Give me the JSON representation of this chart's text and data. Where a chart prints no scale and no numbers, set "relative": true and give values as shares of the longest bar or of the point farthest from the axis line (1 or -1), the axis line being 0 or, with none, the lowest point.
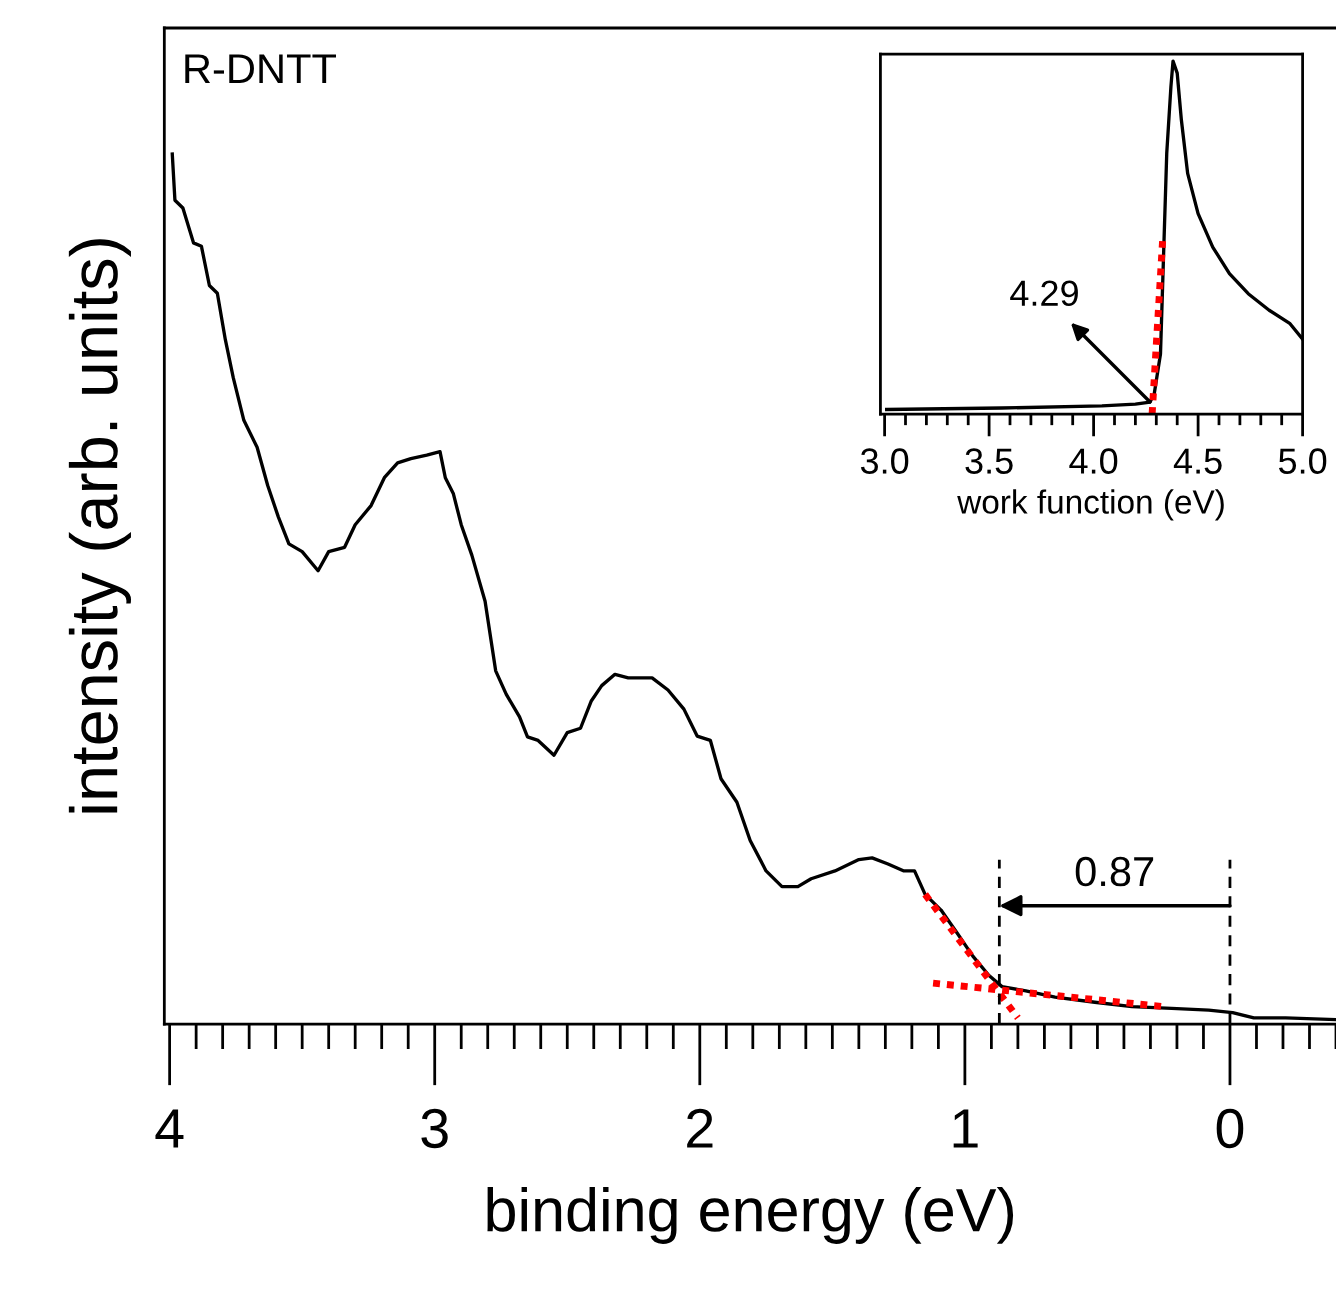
{
  "chart_data": [
    {
      "type": "line",
      "relative": true,
      "xlabel": "binding energy (eV)",
      "ylabel": "intensity (arb. units)",
      "tick_labels": "x",
      "xlim": [
        4.02,
        -0.4
      ],
      "xticks": [
        4,
        {
          "value": 3.9,
          "label": null
        },
        {
          "value": 3.8,
          "label": null
        },
        {
          "value": 3.7,
          "label": null
        },
        {
          "value": 3.6,
          "label": null
        },
        {
          "value": 3.5,
          "label": null
        },
        {
          "value": 3.4,
          "label": null
        },
        {
          "value": 3.3,
          "label": null
        },
        {
          "value": 3.2,
          "label": null
        },
        {
          "value": 3.1,
          "label": null
        },
        3,
        {
          "value": 2.9,
          "label": null
        },
        {
          "value": 2.8,
          "label": null
        },
        {
          "value": 2.7,
          "label": null
        },
        {
          "value": 2.6,
          "label": null
        },
        {
          "value": 2.5,
          "label": null
        },
        {
          "value": 2.4,
          "label": null
        },
        {
          "value": 2.3,
          "label": null
        },
        {
          "value": 2.2,
          "label": null
        },
        {
          "value": 2.1,
          "label": null
        },
        2,
        {
          "value": 1.9,
          "label": null
        },
        {
          "value": 1.8,
          "label": null
        },
        {
          "value": 1.7,
          "label": null
        },
        {
          "value": 1.6,
          "label": null
        },
        {
          "value": 1.5,
          "label": null
        },
        {
          "value": 1.4,
          "label": null
        },
        {
          "value": 1.3,
          "label": null
        },
        {
          "value": 1.2,
          "label": null
        },
        {
          "value": 1.1,
          "label": null
        },
        1,
        {
          "value": 0.9,
          "label": null
        },
        {
          "value": 0.8,
          "label": null
        },
        {
          "value": 0.7,
          "label": null
        },
        {
          "value": 0.6,
          "label": null
        },
        {
          "value": 0.5,
          "label": null
        },
        {
          "value": 0.4,
          "label": null
        },
        {
          "value": 0.3,
          "label": null
        },
        {
          "value": 0.2,
          "label": null
        },
        {
          "value": 0.1,
          "label": null
        },
        0,
        {
          "value": -0.1,
          "label": null
        },
        {
          "value": -0.2,
          "label": null
        },
        {
          "value": -0.3,
          "label": null
        },
        {
          "value": -0.4,
          "label": null
        }
      ],
      "series": [
        {
          "color": "#000000",
          "line_style": "solid",
          "x": [
            3.99,
            3.98,
            3.95,
            3.91,
            3.88,
            3.85,
            3.82,
            3.79,
            3.76,
            3.72,
            3.67,
            3.63,
            3.59,
            3.55,
            3.5,
            3.44,
            3.4,
            3.34,
            3.3,
            3.24,
            3.19,
            3.14,
            3.09,
            3.03,
            2.98,
            2.96,
            2.93,
            2.9,
            2.86,
            2.81,
            2.77,
            2.73,
            2.68,
            2.65,
            2.61,
            2.55,
            2.5,
            2.45,
            2.41,
            2.37,
            2.32,
            2.27,
            2.18,
            2.12,
            2.06,
            2.01,
            1.96,
            1.92,
            1.86,
            1.81,
            1.75,
            1.69,
            1.63,
            1.58,
            1.49,
            1.4,
            1.35,
            1.29,
            1.23,
            1.19,
            1.15,
            1.09,
            1.03,
            0.97,
            0.91,
            0.86,
            0.77,
            0.66,
            0.51,
            0.37,
            0.22,
            0.08,
            -0.01,
            -0.09,
            -0.21,
            -0.4
          ],
          "values": [
            1.0,
            0.947,
            0.938,
            0.898,
            0.894,
            0.849,
            0.84,
            0.787,
            0.743,
            0.694,
            0.663,
            0.619,
            0.583,
            0.552,
            0.543,
            0.521,
            0.543,
            0.548,
            0.574,
            0.596,
            0.628,
            0.645,
            0.65,
            0.654,
            0.658,
            0.628,
            0.61,
            0.574,
            0.539,
            0.486,
            0.406,
            0.379,
            0.353,
            0.33,
            0.326,
            0.309,
            0.335,
            0.34,
            0.371,
            0.389,
            0.402,
            0.398,
            0.398,
            0.384,
            0.362,
            0.331,
            0.326,
            0.282,
            0.255,
            0.211,
            0.176,
            0.158,
            0.158,
            0.167,
            0.176,
            0.189,
            0.191,
            0.184,
            0.176,
            0.176,
            0.149,
            0.131,
            0.105,
            0.078,
            0.056,
            0.043,
            0.038,
            0.031,
            0.025,
            0.02,
            0.018,
            0.016,
            0.013,
            0.007,
            0.007,
            0.005
          ]
        },
        {
          "color": "#ff0000",
          "line_style": "dotted",
          "x": [
            1.15,
            0.8
          ],
          "values": [
            0.149,
            0.007
          ]
        },
        {
          "color": "#ff0000",
          "line_style": "dotted",
          "x": [
            1.12,
            0.25
          ],
          "values": [
            0.047,
            0.02
          ]
        }
      ],
      "ref_lines": [
        {
          "axis": "x",
          "value": 0.87,
          "color": "#000000",
          "line_style": "dashed"
        },
        {
          "axis": "x",
          "value": 0,
          "color": "#000000",
          "line_style": "dashed"
        }
      ],
      "annotations": [
        "R-DNTT",
        {
          "text": "0.87",
          "x": 0.87,
          "y": 0.136
        }
      ]
    },
    {
      "type": "line",
      "relative": true,
      "xlabel": "work function (eV)",
      "tick_labels": "x",
      "xlim": [
        2.98,
        5.0
      ],
      "xticks": [
        {
          "value": 3.0,
          "label": "3.0"
        },
        {
          "value": 3.1,
          "label": null
        },
        {
          "value": 3.2,
          "label": null
        },
        {
          "value": 3.3,
          "label": null
        },
        {
          "value": 3.4,
          "label": null
        },
        3.5,
        {
          "value": 3.6,
          "label": null
        },
        {
          "value": 3.7,
          "label": null
        },
        {
          "value": 3.8,
          "label": null
        },
        {
          "value": 3.9,
          "label": null
        },
        {
          "value": 4.0,
          "label": "4.0"
        },
        {
          "value": 4.1,
          "label": null
        },
        {
          "value": 4.2,
          "label": null
        },
        {
          "value": 4.3,
          "label": null
        },
        {
          "value": 4.4,
          "label": null
        },
        4.5,
        {
          "value": 4.6,
          "label": null
        },
        {
          "value": 4.7,
          "label": null
        },
        {
          "value": 4.8,
          "label": null
        },
        {
          "value": 4.9,
          "label": null
        },
        {
          "value": 5.0,
          "label": "5.0"
        }
      ],
      "series": [
        {
          "color": "#000000",
          "line_style": "solid",
          "x": [
            3.01,
            3.56,
            4.04,
            4.2,
            4.27,
            4.29,
            4.32,
            4.33,
            4.35,
            4.37,
            4.38,
            4.4,
            4.42,
            4.45,
            4.5,
            4.57,
            4.65,
            4.74,
            4.84,
            4.94,
            5.0
          ],
          "values": [
            0.013,
            0.017,
            0.023,
            0.028,
            0.034,
            0.057,
            0.17,
            0.36,
            0.739,
            0.928,
            1.0,
            0.966,
            0.833,
            0.682,
            0.568,
            0.473,
            0.398,
            0.341,
            0.294,
            0.256,
            0.212
          ]
        },
        {
          "color": "#ff0000",
          "line_style": "dotted",
          "x": [
            4.28,
            4.33
          ],
          "values": [
            0.0,
            0.49
          ]
        }
      ],
      "annotations": [
        {
          "text": "4.29",
          "x": 4.27,
          "y": 0.034
        }
      ]
    }
  ]
}
